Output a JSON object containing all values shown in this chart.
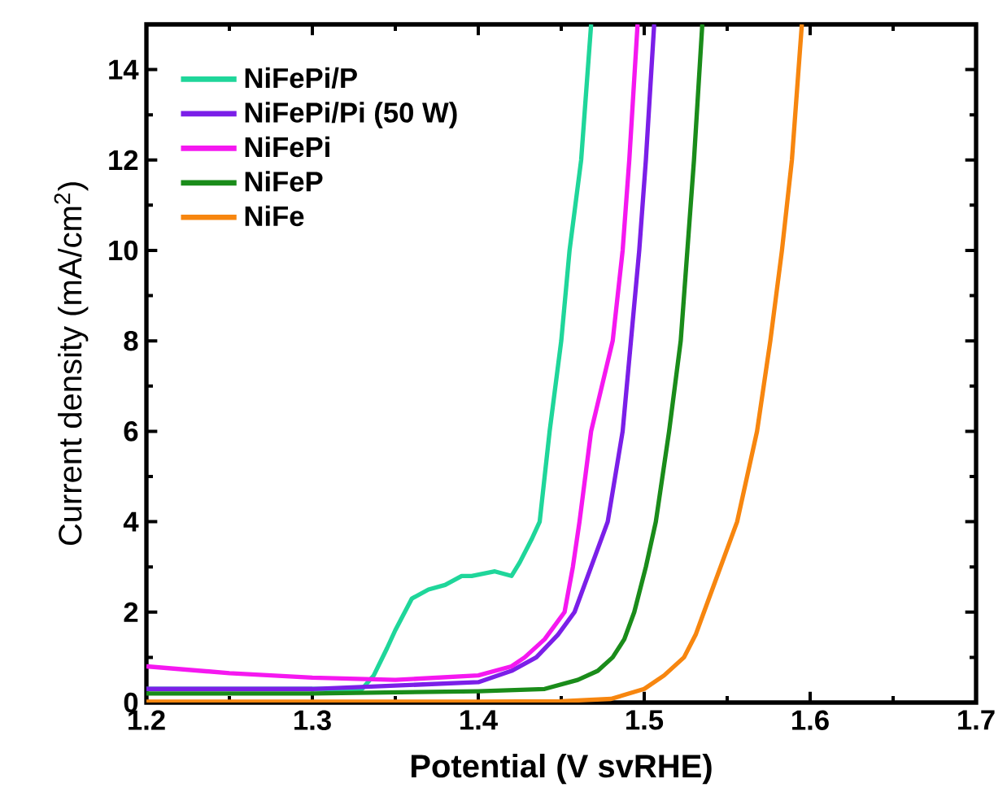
{
  "chart_data": {
    "type": "line",
    "xlabel": "Potential (V svRHE)",
    "ylabel": "Current density (mA/cm$^{2}$)",
    "xlim": [
      1.2,
      1.7
    ],
    "ylim": [
      0,
      15
    ],
    "xticks": [
      1.2,
      1.3,
      1.4,
      1.5,
      1.6,
      1.7
    ],
    "yticks": [
      0,
      2,
      4,
      6,
      8,
      10,
      12,
      14
    ],
    "legend": "top left",
    "grid": false,
    "marker": "none",
    "line_style": "solid",
    "series": [
      {
        "name": "NiFePi/P",
        "color": "#1fd69a",
        "x": [
          1.2,
          1.25,
          1.3,
          1.33,
          1.337,
          1.345,
          1.35,
          1.36,
          1.37,
          1.38,
          1.39,
          1.396,
          1.41,
          1.42,
          1.425,
          1.432,
          1.437,
          1.443,
          1.45,
          1.455,
          1.462,
          1.468
        ],
        "values": [
          0.3,
          0.3,
          0.3,
          0.3,
          0.6,
          1.2,
          1.6,
          2.3,
          2.5,
          2.6,
          2.8,
          2.8,
          2.9,
          2.8,
          3.1,
          3.6,
          4,
          6,
          8,
          10,
          12,
          15
        ]
      },
      {
        "name": "NiFePi/Pi (50 W)",
        "color": "#7b1fe8",
        "x": [
          1.2,
          1.3,
          1.4,
          1.42,
          1.435,
          1.448,
          1.458,
          1.468,
          1.478,
          1.487,
          1.492,
          1.497,
          1.501,
          1.506
        ],
        "values": [
          0.3,
          0.3,
          0.45,
          0.7,
          1,
          1.5,
          2,
          3,
          4,
          6,
          8,
          10,
          12,
          15
        ]
      },
      {
        "name": "NiFePi",
        "color": "#f518f0",
        "x": [
          1.2,
          1.25,
          1.3,
          1.35,
          1.4,
          1.42,
          1.428,
          1.44,
          1.452,
          1.457,
          1.461,
          1.468,
          1.481,
          1.487,
          1.491,
          1.496
        ],
        "values": [
          0.8,
          0.65,
          0.55,
          0.5,
          0.6,
          0.8,
          1,
          1.4,
          2,
          3,
          4,
          6,
          8,
          10,
          12,
          15
        ]
      },
      {
        "name": "NiFeP",
        "color": "#1a8c1a",
        "x": [
          1.2,
          1.3,
          1.4,
          1.44,
          1.46,
          1.472,
          1.481,
          1.488,
          1.494,
          1.501,
          1.507,
          1.515,
          1.522,
          1.526,
          1.53,
          1.535
        ],
        "values": [
          0.2,
          0.2,
          0.25,
          0.3,
          0.5,
          0.7,
          1,
          1.4,
          2,
          3,
          4,
          6,
          8,
          10,
          12,
          15
        ]
      },
      {
        "name": "NiFe",
        "color": "#f7860f",
        "x": [
          1.2,
          1.4,
          1.45,
          1.48,
          1.5,
          1.512,
          1.524,
          1.531,
          1.536,
          1.546,
          1.556,
          1.568,
          1.576,
          1.583,
          1.589,
          1.595
        ],
        "values": [
          0.02,
          0.02,
          0.03,
          0.08,
          0.3,
          0.6,
          1,
          1.5,
          2,
          3,
          4,
          6,
          8,
          10,
          12,
          15
        ]
      }
    ]
  }
}
